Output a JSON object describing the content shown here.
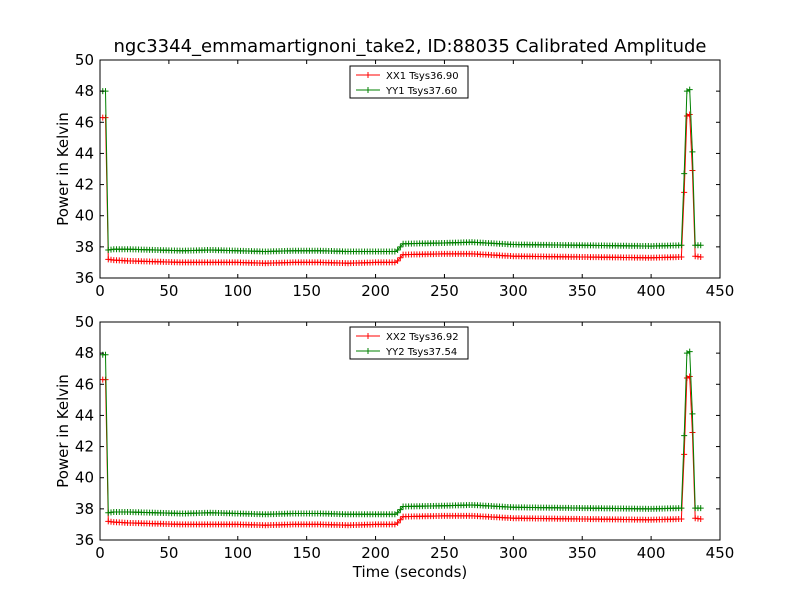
{
  "page": {
    "title": "ngc3344_emmamartignoni_take2, ID:88035 Calibrated Amplitude"
  },
  "chart_data": [
    {
      "type": "line",
      "title": "ngc3344_emmamartignoni_take2, ID:88035 Calibrated Amplitude",
      "xlabel": "",
      "ylabel": "Power in Kelvin",
      "xlim": [
        0,
        450
      ],
      "ylim": [
        36,
        50
      ],
      "xticks": [
        0,
        50,
        100,
        150,
        200,
        250,
        300,
        350,
        400,
        450
      ],
      "yticks": [
        36,
        38,
        40,
        42,
        44,
        46,
        48,
        50
      ],
      "legend_position": "top-center",
      "markers": "plus",
      "series": [
        {
          "name": "XX1 Tsys36.90",
          "color": "#ff0000",
          "points": [
            [
              2,
              46.3
            ],
            [
              4,
              46.3
            ],
            [
              6,
              37.2
            ],
            [
              10,
              37.15
            ],
            [
              20,
              37.1
            ],
            [
              40,
              37.05
            ],
            [
              60,
              37.0
            ],
            [
              80,
              37.0
            ],
            [
              100,
              37.0
            ],
            [
              120,
              36.95
            ],
            [
              140,
              37.0
            ],
            [
              160,
              37.0
            ],
            [
              180,
              36.95
            ],
            [
              200,
              37.0
            ],
            [
              215,
              37.0
            ],
            [
              220,
              37.5
            ],
            [
              250,
              37.55
            ],
            [
              270,
              37.55
            ],
            [
              300,
              37.4
            ],
            [
              350,
              37.35
            ],
            [
              400,
              37.3
            ],
            [
              422,
              37.35
            ],
            [
              424,
              41.5
            ],
            [
              426,
              46.4
            ],
            [
              428,
              46.5
            ],
            [
              430,
              42.9
            ],
            [
              432,
              37.4
            ],
            [
              436,
              37.35
            ]
          ]
        },
        {
          "name": "YY1 Tsys37.60",
          "color": "#008000",
          "points": [
            [
              2,
              48.0
            ],
            [
              4,
              48.0
            ],
            [
              6,
              37.8
            ],
            [
              10,
              37.85
            ],
            [
              20,
              37.85
            ],
            [
              40,
              37.8
            ],
            [
              60,
              37.75
            ],
            [
              80,
              37.8
            ],
            [
              100,
              37.75
            ],
            [
              120,
              37.7
            ],
            [
              140,
              37.75
            ],
            [
              160,
              37.75
            ],
            [
              180,
              37.7
            ],
            [
              200,
              37.7
            ],
            [
              215,
              37.7
            ],
            [
              220,
              38.2
            ],
            [
              250,
              38.25
            ],
            [
              270,
              38.3
            ],
            [
              300,
              38.15
            ],
            [
              350,
              38.1
            ],
            [
              400,
              38.05
            ],
            [
              422,
              38.1
            ],
            [
              424,
              42.7
            ],
            [
              426,
              48.0
            ],
            [
              428,
              48.1
            ],
            [
              430,
              44.1
            ],
            [
              432,
              38.1
            ],
            [
              436,
              38.1
            ]
          ]
        }
      ]
    },
    {
      "type": "line",
      "title": "",
      "xlabel": "Time (seconds)",
      "ylabel": "Power in Kelvin",
      "xlim": [
        0,
        450
      ],
      "ylim": [
        36,
        50
      ],
      "xticks": [
        0,
        50,
        100,
        150,
        200,
        250,
        300,
        350,
        400,
        450
      ],
      "yticks": [
        36,
        38,
        40,
        42,
        44,
        46,
        48,
        50
      ],
      "legend_position": "top-center",
      "markers": "plus",
      "series": [
        {
          "name": "XX2 Tsys36.92",
          "color": "#ff0000",
          "points": [
            [
              2,
              46.3
            ],
            [
              4,
              46.3
            ],
            [
              6,
              37.2
            ],
            [
              10,
              37.15
            ],
            [
              20,
              37.1
            ],
            [
              40,
              37.05
            ],
            [
              60,
              37.0
            ],
            [
              80,
              37.0
            ],
            [
              100,
              37.0
            ],
            [
              120,
              36.95
            ],
            [
              140,
              37.0
            ],
            [
              160,
              37.0
            ],
            [
              180,
              36.95
            ],
            [
              200,
              37.0
            ],
            [
              215,
              37.0
            ],
            [
              220,
              37.5
            ],
            [
              250,
              37.55
            ],
            [
              270,
              37.55
            ],
            [
              300,
              37.4
            ],
            [
              350,
              37.35
            ],
            [
              400,
              37.3
            ],
            [
              422,
              37.35
            ],
            [
              424,
              41.5
            ],
            [
              426,
              46.4
            ],
            [
              428,
              46.5
            ],
            [
              430,
              42.9
            ],
            [
              432,
              37.4
            ],
            [
              436,
              37.35
            ]
          ]
        },
        {
          "name": "YY2 Tsys37.54",
          "color": "#008000",
          "points": [
            [
              2,
              47.9
            ],
            [
              4,
              47.9
            ],
            [
              6,
              37.75
            ],
            [
              10,
              37.8
            ],
            [
              20,
              37.8
            ],
            [
              40,
              37.75
            ],
            [
              60,
              37.7
            ],
            [
              80,
              37.75
            ],
            [
              100,
              37.7
            ],
            [
              120,
              37.65
            ],
            [
              140,
              37.7
            ],
            [
              160,
              37.7
            ],
            [
              180,
              37.65
            ],
            [
              200,
              37.65
            ],
            [
              215,
              37.65
            ],
            [
              220,
              38.15
            ],
            [
              250,
              38.2
            ],
            [
              270,
              38.25
            ],
            [
              300,
              38.1
            ],
            [
              350,
              38.05
            ],
            [
              400,
              38.0
            ],
            [
              422,
              38.05
            ],
            [
              424,
              42.7
            ],
            [
              426,
              48.0
            ],
            [
              428,
              48.1
            ],
            [
              430,
              44.1
            ],
            [
              432,
              38.05
            ],
            [
              436,
              38.05
            ]
          ]
        }
      ]
    }
  ]
}
